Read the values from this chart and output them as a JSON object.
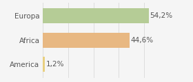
{
  "categories": [
    "America",
    "Africa",
    "Europa"
  ],
  "values": [
    1.2,
    44.6,
    54.2
  ],
  "bar_colors": [
    "#e8d080",
    "#e8b882",
    "#b5cc96"
  ],
  "labels": [
    "1,2%",
    "44,6%",
    "54,2%"
  ],
  "xlim": [
    0,
    65
  ],
  "background_color": "#f5f5f5",
  "bar_height": 0.62,
  "label_fontsize": 7.5,
  "tick_fontsize": 7.5,
  "grid_color": "#dddddd",
  "text_color": "#555555",
  "grid_ticks": [
    0,
    13,
    26,
    39,
    52,
    65
  ]
}
